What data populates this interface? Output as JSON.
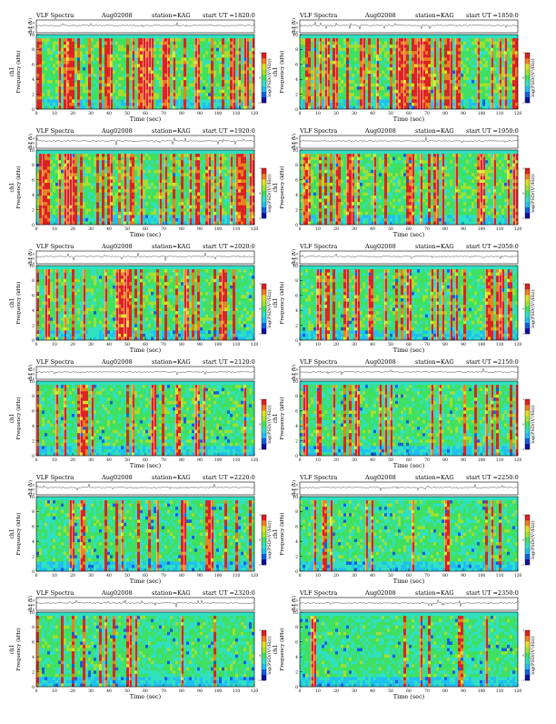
{
  "common": {
    "title_left": "VLF Spectra",
    "date": "Aug02008",
    "station": "station=KAG",
    "start_prefix": "start  UT  =",
    "ch_label": "ch1 (V)",
    "freq_label": "Frequency  (kHz)",
    "ch1_label": "ch1",
    "x_label": "Time  (sec)",
    "colorbar_label": "log(PSD/(V²/Hz))",
    "voltage_ticks": [
      "0.10",
      "0.00",
      "-0.10"
    ],
    "freq_ticks": [
      "0",
      "2",
      "4",
      "6",
      "8",
      "10"
    ],
    "time_ticks": [
      "0",
      "10",
      "20",
      "30",
      "40",
      "50",
      "60",
      "70",
      "80",
      "90",
      "100",
      "110",
      "120"
    ],
    "colorbar_ticks": [
      "-1",
      "0",
      "1"
    ]
  },
  "panels": [
    {
      "id": "p1820",
      "start": "1820:0"
    },
    {
      "id": "p1850",
      "start": "1850:0"
    },
    {
      "id": "p1920",
      "start": "1920:0"
    },
    {
      "id": "p1950",
      "start": "1950:0"
    },
    {
      "id": "p2020",
      "start": "2020:0"
    },
    {
      "id": "p2050",
      "start": "2050:0"
    },
    {
      "id": "p2120",
      "start": "2120:0"
    },
    {
      "id": "p2150",
      "start": "2150:0"
    },
    {
      "id": "p2220",
      "start": "2220:0"
    },
    {
      "id": "p2250",
      "start": "2250:0"
    },
    {
      "id": "p2320",
      "start": "2320:0"
    },
    {
      "id": "p2350",
      "start": "2350:0"
    }
  ],
  "chart_data": {
    "type": "heatmap",
    "description_axes": {
      "x": "Time (sec)",
      "y": "Frequency (kHz)"
    },
    "xlim": [
      0,
      120
    ],
    "ylim": [
      0,
      10
    ],
    "waveform_ylim": [
      -0.1,
      0.1
    ],
    "colorbar_range": [
      -1,
      1
    ],
    "colormap": [
      "#1010a0",
      "#1060e0",
      "#20c0f0",
      "#30e0c0",
      "#40e060",
      "#a0e030",
      "#e0e020",
      "#f08020",
      "#e02020",
      "#ffffff"
    ],
    "panel_intensity": [
      0.85,
      0.85,
      0.8,
      0.78,
      0.6,
      0.55,
      0.5,
      0.45,
      0.35,
      0.4,
      0.3,
      0.25
    ]
  }
}
